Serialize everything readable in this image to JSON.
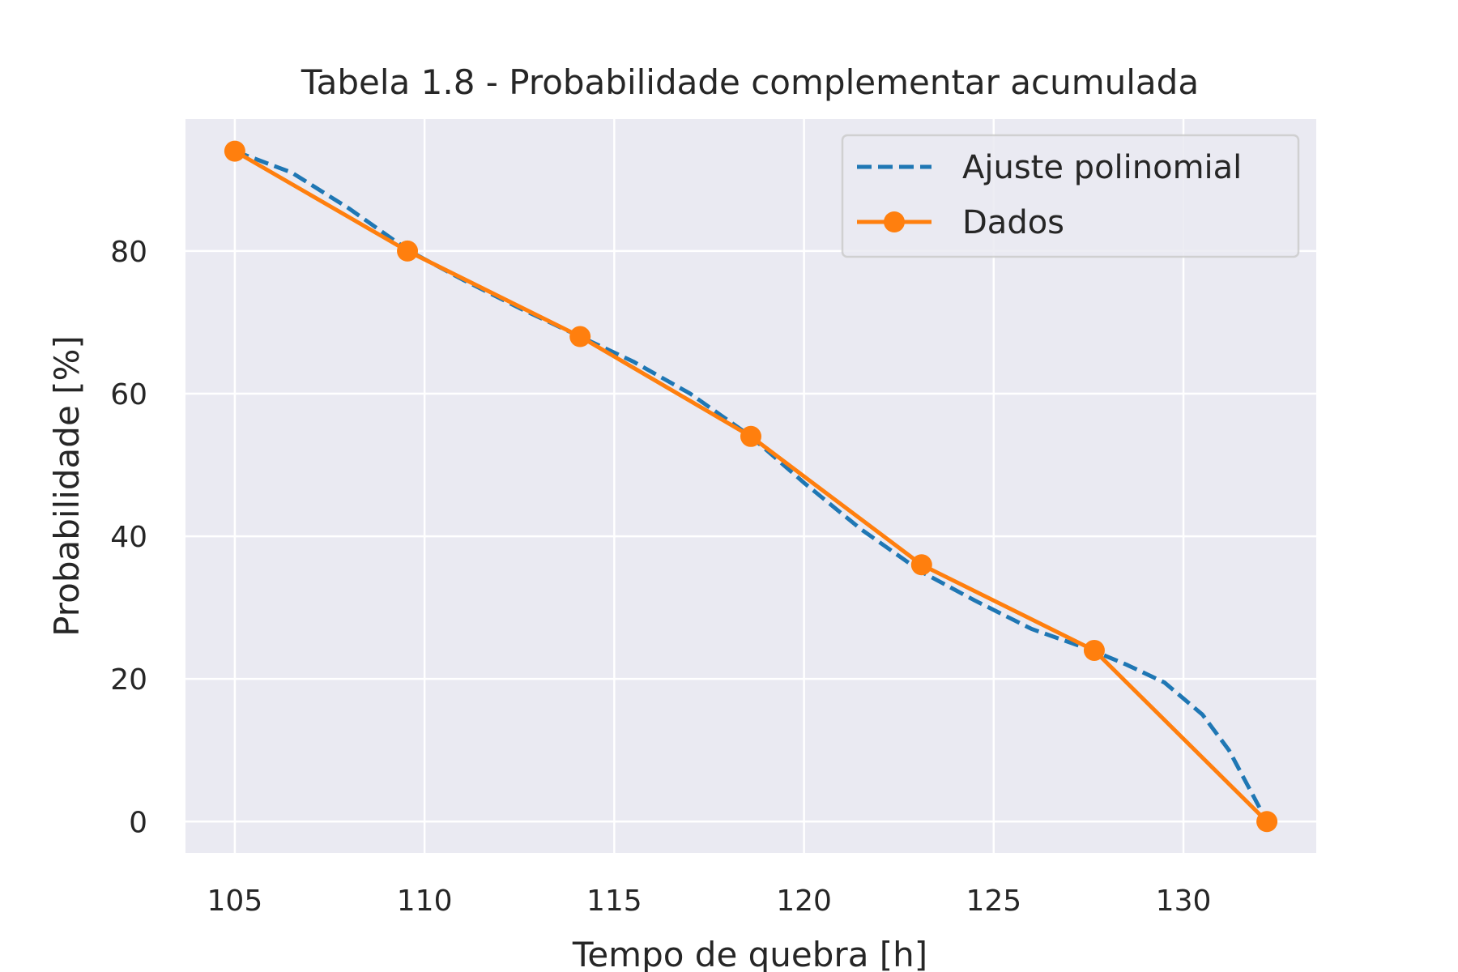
{
  "chart_data": {
    "type": "line",
    "title": "Tabela 1.8 - Probabilidade complementar acumulada",
    "xlabel": "Tempo de quebra [h]",
    "ylabel": "Probabilidade [%]",
    "xlim": [
      103.7,
      133.5
    ],
    "ylim": [
      -4.4,
      98.5
    ],
    "xticks": [
      105,
      110,
      115,
      120,
      125,
      130
    ],
    "yticks": [
      0,
      20,
      40,
      60,
      80
    ],
    "grid": true,
    "legend_position": "top-right",
    "series": [
      {
        "name": "Ajuste polinomial",
        "style": "dashed",
        "color": "#1f77b4",
        "x": [
          105.0,
          106.5,
          108.0,
          109.6,
          111.0,
          112.5,
          114.1,
          115.5,
          117.0,
          118.6,
          120.0,
          121.5,
          123.1,
          124.5,
          126.0,
          127.6,
          128.5,
          129.5,
          130.5,
          131.2,
          131.7,
          132.2
        ],
        "y": [
          94,
          91,
          86,
          80,
          76,
          72,
          68,
          64.5,
          60,
          54,
          47.5,
          41,
          35,
          31,
          27,
          24,
          22,
          19.5,
          15,
          10,
          5,
          0
        ]
      },
      {
        "name": "Dados",
        "style": "solid-markers",
        "color": "#ff7f0e",
        "x": [
          105.0,
          109.55,
          114.1,
          118.6,
          123.1,
          127.65,
          132.2
        ],
        "y": [
          94,
          80,
          68,
          54,
          36,
          24,
          0
        ]
      }
    ]
  },
  "colors": {
    "plot_background": "#eaeaf2",
    "grid": "#ffffff",
    "text": "#262626"
  }
}
